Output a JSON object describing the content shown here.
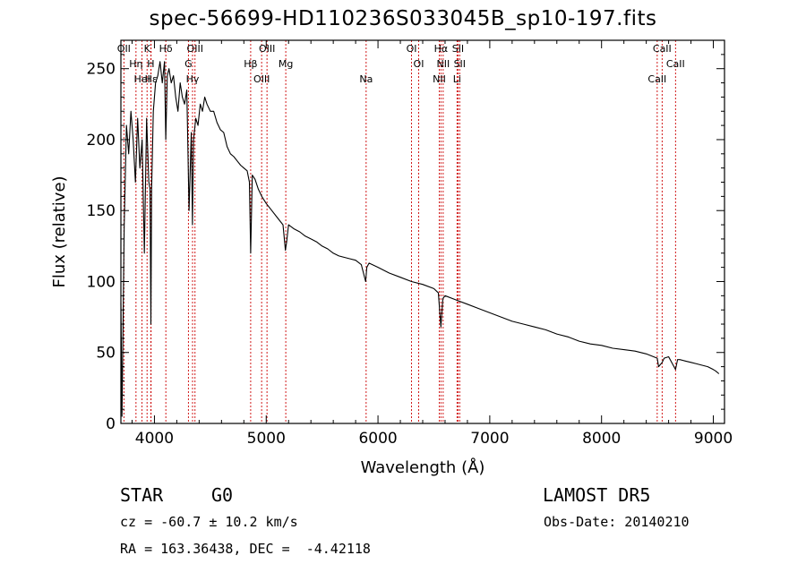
{
  "chart_data": {
    "type": "line",
    "title": "spec-56699-HD110236S033045B_sp10-197.fits",
    "xlabel": "Wavelength (Å)",
    "ylabel": "Flux (relative)",
    "xlim": [
      3700,
      9100
    ],
    "ylim": [
      0,
      270
    ],
    "xticks": [
      4000,
      5000,
      6000,
      7000,
      8000,
      9000
    ],
    "yticks": [
      0,
      50,
      100,
      150,
      200,
      250
    ],
    "grid": false,
    "series": [
      {
        "x": [
          3700,
          3710,
          3730,
          3750,
          3770,
          3790,
          3810,
          3830,
          3850,
          3870,
          3890,
          3910,
          3930,
          3950,
          3960,
          3968,
          3975,
          3990,
          4010,
          4030,
          4050,
          4070,
          4090,
          4101,
          4115,
          4130,
          4150,
          4170,
          4190,
          4210,
          4230,
          4250,
          4270,
          4290,
          4310,
          4330,
          4340,
          4350,
          4370,
          4390,
          4410,
          4430,
          4450,
          4470,
          4500,
          4530,
          4560,
          4590,
          4620,
          4650,
          4680,
          4710,
          4740,
          4770,
          4800,
          4830,
          4850,
          4861,
          4875,
          4900,
          4930,
          4960,
          5000,
          5050,
          5100,
          5150,
          5172,
          5183,
          5200,
          5250,
          5300,
          5350,
          5400,
          5450,
          5500,
          5550,
          5600,
          5650,
          5700,
          5750,
          5800,
          5850,
          5890,
          5900,
          5920,
          6000,
          6100,
          6200,
          6300,
          6400,
          6500,
          6540,
          6563,
          6580,
          6600,
          6700,
          6800,
          6900,
          7000,
          7100,
          7200,
          7300,
          7400,
          7500,
          7600,
          7700,
          7800,
          7900,
          8000,
          8100,
          8200,
          8300,
          8400,
          8498,
          8510,
          8542,
          8560,
          8600,
          8662,
          8680,
          8700,
          8750,
          8800,
          8850,
          8900,
          8950,
          9000,
          9020,
          9050
        ],
        "y": [
          85,
          5,
          140,
          210,
          190,
          220,
          200,
          170,
          215,
          180,
          200,
          120,
          215,
          170,
          165,
          70,
          165,
          220,
          240,
          245,
          255,
          240,
          255,
          200,
          245,
          250,
          240,
          245,
          230,
          220,
          240,
          230,
          225,
          235,
          150,
          205,
          140,
          200,
          215,
          210,
          225,
          220,
          230,
          225,
          220,
          220,
          212,
          207,
          205,
          195,
          190,
          188,
          185,
          182,
          180,
          178,
          170,
          120,
          175,
          172,
          165,
          160,
          155,
          150,
          145,
          140,
          122,
          128,
          140,
          137,
          135,
          132,
          130,
          128,
          125,
          123,
          120,
          118,
          117,
          116,
          115,
          112,
          100,
          110,
          113,
          110,
          106,
          103,
          100,
          98,
          95,
          92,
          68,
          88,
          90,
          87,
          84,
          81,
          78,
          75,
          72,
          70,
          68,
          66,
          63,
          61,
          58,
          56,
          55,
          53,
          52,
          51,
          49,
          46,
          40,
          43,
          46,
          47,
          38,
          45,
          45,
          44,
          43,
          42,
          41,
          40,
          38,
          37,
          35
        ]
      }
    ],
    "lines": [
      {
        "x": 3727,
        "labels": [
          "OII"
        ]
      },
      {
        "x": 3835,
        "labels": [
          "Hη"
        ]
      },
      {
        "x": 3889,
        "labels": [
          "HeI"
        ]
      },
      {
        "x": 3934,
        "labels": [
          "K"
        ]
      },
      {
        "x": 3968,
        "labels": [
          "H"
        ]
      },
      {
        "x": 3970,
        "labels": [
          "Hε"
        ]
      },
      {
        "x": 4102,
        "labels": [
          "Hδ"
        ]
      },
      {
        "x": 4304,
        "labels": [
          "G"
        ]
      },
      {
        "x": 4341,
        "labels": [
          "Hγ"
        ]
      },
      {
        "x": 4363,
        "labels": [
          "OIII"
        ]
      },
      {
        "x": 4861,
        "labels": [
          "Hβ"
        ]
      },
      {
        "x": 4959,
        "labels": [
          "OIII"
        ]
      },
      {
        "x": 5007,
        "labels": [
          "OIII"
        ]
      },
      {
        "x": 5175,
        "labels": [
          "Mg"
        ]
      },
      {
        "x": 5894,
        "labels": [
          "Na"
        ]
      },
      {
        "x": 6300,
        "labels": [
          "OI"
        ]
      },
      {
        "x": 6364,
        "labels": [
          "OI"
        ]
      },
      {
        "x": 6548,
        "labels": [
          "NII"
        ]
      },
      {
        "x": 6563,
        "labels": [
          "Hα"
        ]
      },
      {
        "x": 6583,
        "labels": [
          "NII"
        ]
      },
      {
        "x": 6707,
        "labels": [
          "Li"
        ]
      },
      {
        "x": 6716,
        "labels": [
          "SII"
        ]
      },
      {
        "x": 6731,
        "labels": [
          "SII"
        ]
      },
      {
        "x": 8498,
        "labels": [
          "CaII"
        ]
      },
      {
        "x": 8542,
        "labels": [
          "CaII"
        ]
      },
      {
        "x": 8662,
        "labels": [
          "CaII"
        ]
      }
    ]
  },
  "info": {
    "object_class": "STAR",
    "subclass": "G0",
    "survey": "LAMOST DR5",
    "cz": "cz = -60.7 ± 10.2 km/s",
    "obs_date": "Obs-Date: 20140210",
    "coords": "RA = 163.36438, DEC =  -4.42118"
  },
  "colors": {
    "spectrum": "#000000",
    "line_markers": "#cc0000",
    "axes": "#000000",
    "background": "#ffffff"
  }
}
